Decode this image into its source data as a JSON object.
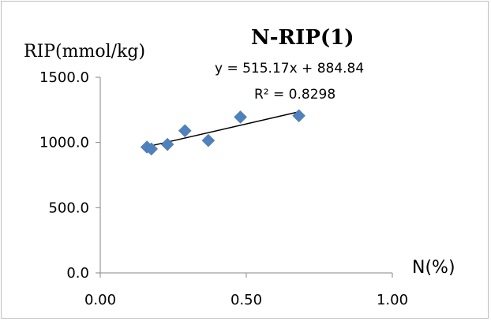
{
  "chart_data": {
    "type": "scatter",
    "title": "N-RIP(1)",
    "xlabel": "N(%)",
    "ylabel": "RIP(mmol/kg)",
    "xlim": [
      0,
      1
    ],
    "ylim": [
      0,
      1500
    ],
    "x_ticks": [
      "0.00",
      "0.50",
      "1.00"
    ],
    "y_ticks": [
      "0.0",
      "500.0",
      "1000.0",
      "1500.0"
    ],
    "grid": false,
    "legend": "none",
    "marker_color": "#4f81bd",
    "series": [
      {
        "points": [
          {
            "x": 0.16,
            "y": 965
          },
          {
            "x": 0.175,
            "y": 950
          },
          {
            "x": 0.23,
            "y": 985
          },
          {
            "x": 0.29,
            "y": 1090
          },
          {
            "x": 0.37,
            "y": 1015
          },
          {
            "x": 0.48,
            "y": 1195
          },
          {
            "x": 0.68,
            "y": 1205
          }
        ]
      }
    ],
    "trendline": {
      "type": "linear",
      "slope": 515.17,
      "intercept": 884.84,
      "x_range": [
        0.16,
        0.68
      ],
      "equation_label": "y = 515.17x + 884.84",
      "r2_label": "R² = 0.8298"
    }
  }
}
